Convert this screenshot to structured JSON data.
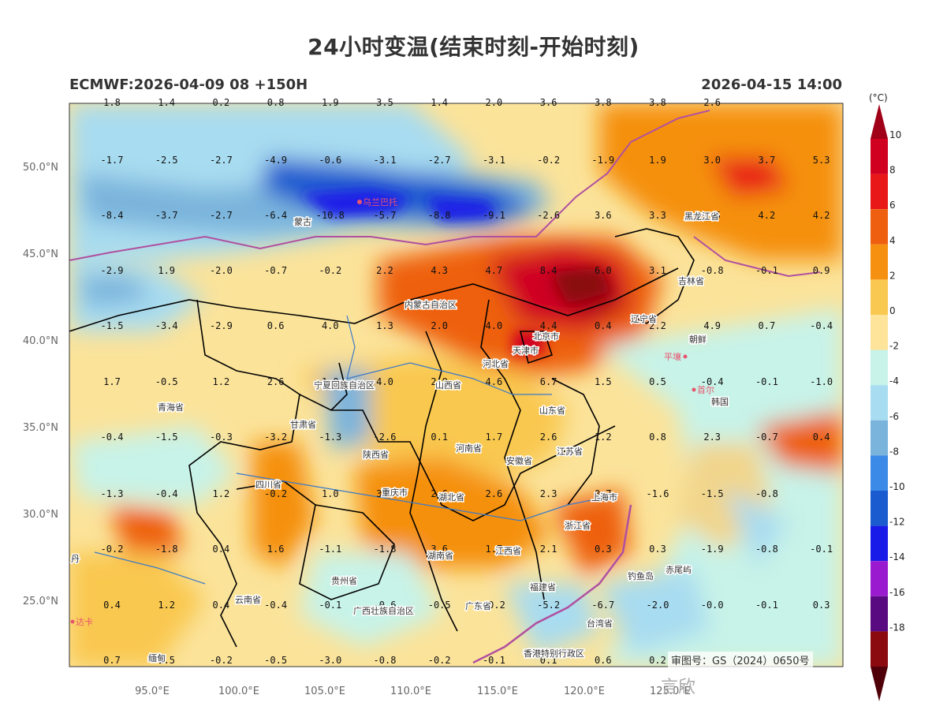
{
  "header": {
    "title": "24小时变温(结束时刻-开始时刻)",
    "model_run": "ECMWF:2026-04-09 08 +150H",
    "valid_time": "2026-04-15 14:00"
  },
  "axes": {
    "x_ticks": [
      "95.0°E",
      "100.0°E",
      "105.0°E",
      "110.0°E",
      "115.0°E",
      "120.0°E",
      "125.0°E"
    ],
    "y_ticks": [
      "50.0°N",
      "45.0°N",
      "40.0°N",
      "35.0°N",
      "30.0°N",
      "25.0°N"
    ]
  },
  "colorbar": {
    "unit": "(°C)",
    "ticks": [
      "10",
      "8",
      "6",
      "4",
      "2",
      "0",
      "-2",
      "-4",
      "-6",
      "-8",
      "-10",
      "-12",
      "-14",
      "-16",
      "-18"
    ],
    "colors": [
      "#d00020",
      "#e81818",
      "#ee6010",
      "#f59010",
      "#f9c850",
      "#fde49a",
      "#c8f3e8",
      "#a8dcf0",
      "#7ab4dc",
      "#3c8ae8",
      "#1a5cd0",
      "#1a1ae8",
      "#9a1ad0",
      "#5a0a80",
      "#8a0a10"
    ],
    "top_color": "#a00018",
    "bottom_color": "#500008"
  },
  "values": {
    "rows": [
      [
        "1.8",
        "1.4",
        "0.2",
        "0.8",
        "1.9",
        "3.5",
        "1.4",
        "2.0",
        "3.6",
        "3.8",
        "3.8",
        "2.6"
      ],
      [
        "-1.7",
        "-2.5",
        "-2.7",
        "-4.9",
        "-0.6",
        "-3.1",
        "-2.7",
        "-3.1",
        "-0.2",
        "-1.9",
        "1.9",
        "3.0",
        "3.7",
        "5.3"
      ],
      [
        "-8.4",
        "-3.7",
        "-2.7",
        "-6.4",
        "-10.8",
        "-5.7",
        "-8.8",
        "-9.1",
        "-2.6",
        "3.6",
        "3.3",
        "4.5",
        "4.2",
        "4.2"
      ],
      [
        "-2.9",
        "1.9",
        "-2.0",
        "-0.7",
        "-0.2",
        "2.2",
        "4.3",
        "4.7",
        "8.4",
        "6.0",
        "3.1",
        "-0.8",
        "-0.1",
        "0.9"
      ],
      [
        "-1.5",
        "-3.4",
        "-2.9",
        "0.6",
        "4.0",
        "1.3",
        "2.0",
        "4.0",
        "4.4",
        "0.4",
        "2.2",
        "4.9",
        "0.7",
        "-0.4"
      ],
      [
        "1.7",
        "-0.5",
        "1.2",
        "2.6",
        "1.0",
        "4.0",
        "2.9",
        "4.6",
        "6.7",
        "1.5",
        "0.5",
        "-0.4",
        "-0.1",
        "-1.0"
      ],
      [
        "-0.4",
        "-1.5",
        "-0.3",
        "-3.2",
        "-1.3",
        "-2.6",
        "0.1",
        "1.7",
        "2.6",
        "1.2",
        "0.8",
        "2.3",
        "-0.7",
        "0.4"
      ],
      [
        "-1.3",
        "-0.4",
        "1.2",
        "-0.2",
        "1.0",
        "3.6",
        "2.6",
        "2.6",
        "2.3",
        "0.7",
        "-1.6",
        "-1.5",
        "-0.8"
      ],
      [
        "-0.2",
        "-1.8",
        "0.4",
        "1.6",
        "-1.1",
        "-1.8",
        "3.6",
        "1.7",
        "2.1",
        "0.3",
        "0.3",
        "-1.9",
        "-0.8",
        "-0.1"
      ],
      [
        "0.4",
        "1.2",
        "0.4",
        "-0.4",
        "-0.1",
        "-0.6",
        "-0.5",
        "-0.2",
        "-5.2",
        "-6.7",
        "-2.0",
        "-0.0",
        "-0.1",
        "0.3"
      ],
      [
        "0.7",
        "1.5",
        "-0.2",
        "-0.5",
        "-3.0",
        "-0.8",
        "-0.2",
        "-0.1",
        "0.1",
        "0.6",
        "0.2"
      ]
    ]
  },
  "places": {
    "mongolia": "蒙古",
    "ulaanbaatar": "乌兰巴托",
    "heilongjiang": "黑龙江省",
    "jilin": "吉林省",
    "liaoning": "辽宁省",
    "neimenggu": "内蒙古自治区",
    "beijing": "北京市",
    "tianjin": "天津市",
    "hebei": "河北省",
    "shanxi": "山西省",
    "shandong": "山东省",
    "ningxia": "宁夏回族自治区",
    "qinghai": "青海省",
    "gansu": "甘肃省",
    "shaanxi": "陕西省",
    "henan": "河南省",
    "jiangsu": "江苏省",
    "anhui": "安徽省",
    "shanghai": "上海市",
    "sichuan": "四川省",
    "chongqing": "重庆市",
    "hubei": "湖北省",
    "zhejiang": "浙江省",
    "hunan": "湖南省",
    "jiangxi": "江西省",
    "guizhou": "贵州省",
    "fujian": "福建省",
    "yunnan": "云南省",
    "guangxi": "广西壮族自治区",
    "guangdong": "广东省",
    "taiwan": "台湾省",
    "hongkong": "香港特别行政区",
    "myanmar": "缅甸",
    "bhutan_short": "丹",
    "dhaka": "达卡",
    "north_korea": "朝鲜",
    "pyongyang": "平壤",
    "seoul": "首尔",
    "south_korea": "韩国",
    "diaoyu": "钓鱼岛",
    "chiwei": "赤尾屿"
  },
  "footer": {
    "map_approval": "审图号：GS（2024）0650号",
    "watermark": "言欣"
  }
}
